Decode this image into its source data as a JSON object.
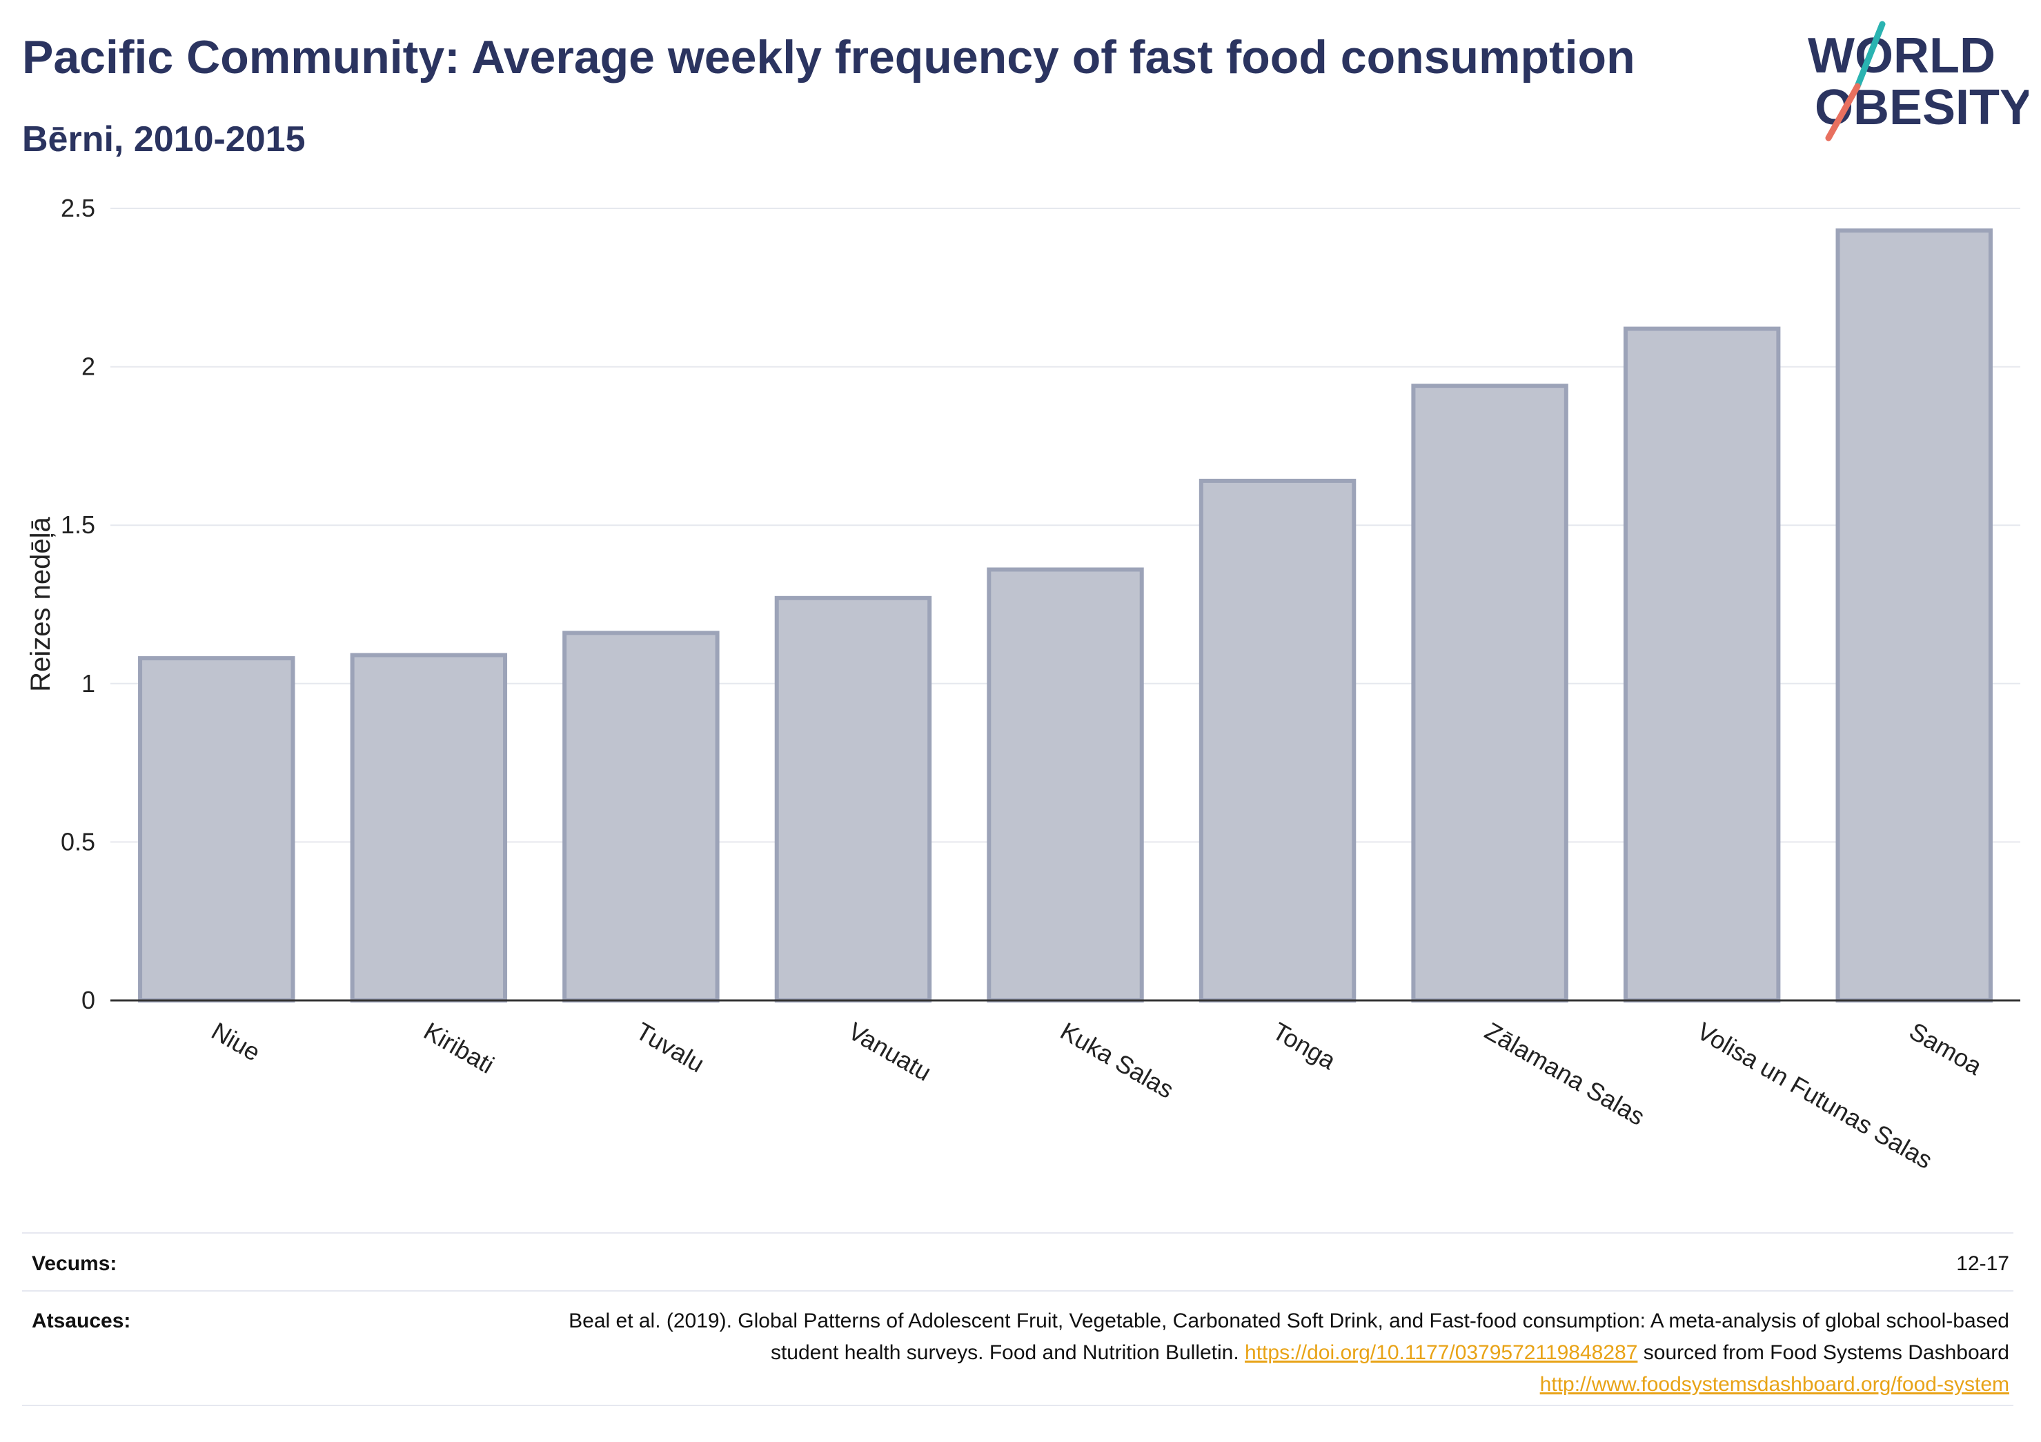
{
  "header": {
    "title": "Pacific Community: Average weekly frequency of fast food consumption",
    "subtitle": "Bērni, 2010-2015"
  },
  "logo": {
    "line1": "WORLD",
    "line2": "OBESITY",
    "text_color": "#2b3460",
    "slash_color_top": "#2ab3b1",
    "slash_color_bottom": "#e8705f"
  },
  "chart_data": {
    "type": "bar",
    "categories": [
      "Niue",
      "Kiribati",
      "Tuvalu",
      "Vanuatu",
      "Kuka Salas",
      "Tonga",
      "Zālamana Salas",
      "Volisa un Futunas Salas",
      "Samoa"
    ],
    "values": [
      1.08,
      1.09,
      1.16,
      1.27,
      1.36,
      1.64,
      1.94,
      2.12,
      2.43
    ],
    "ylabel": "Reizes nedēļā",
    "ylim": [
      0,
      2.5
    ],
    "yticks": [
      0,
      0.5,
      1,
      1.5,
      2,
      2.5
    ],
    "ytick_labels": [
      "0",
      "0.5",
      "1",
      "1.5",
      "2",
      "2.5"
    ],
    "grid": true,
    "bar_fill": "#bfc3cf",
    "bar_stroke": "#9ca3b8"
  },
  "footer": {
    "age_label": "Vecums:",
    "age_value": "12-17",
    "sources_label": "Atsauces:",
    "source_text_1": "Beal et al. (2019). Global Patterns of Adolescent Fruit, Vegetable, Carbonated Soft Drink, and Fast-food consumption: A meta-analysis of global school-based student health surveys. Food and Nutrition Bulletin. ",
    "source_link_1": "https://doi.org/10.1177/0379572119848287",
    "source_text_2": " sourced from Food Systems Dashboard ",
    "source_link_2": "http://www.foodsystemsdashboard.org/food-system"
  }
}
